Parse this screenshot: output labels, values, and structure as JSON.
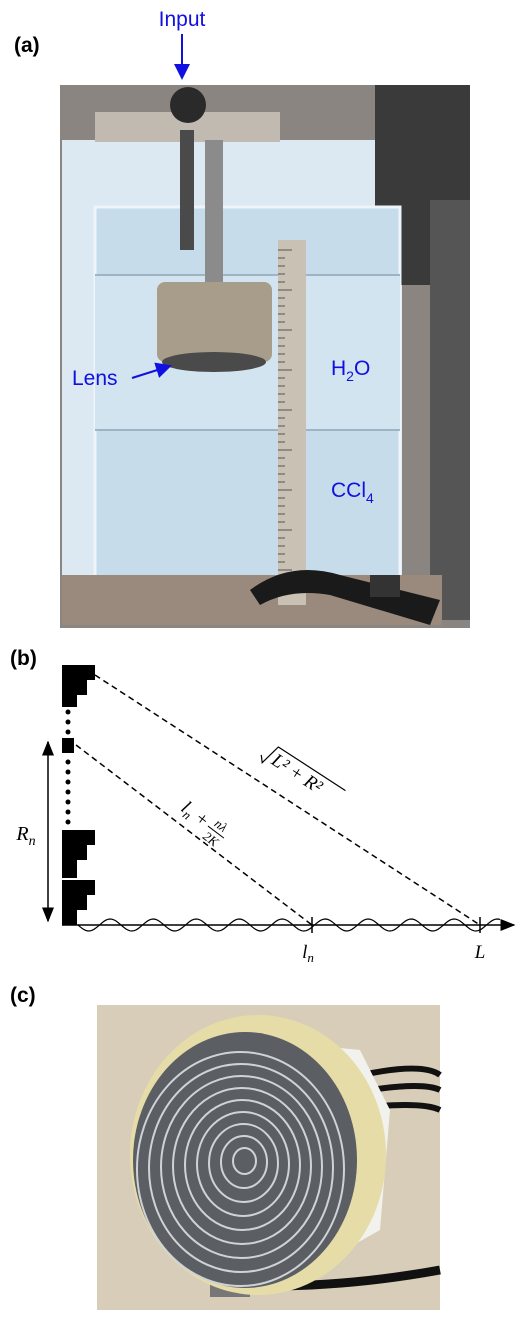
{
  "panel_a": {
    "label": "(a)",
    "input": "Input",
    "lens": "Lens",
    "h2o": {
      "base": "H",
      "sub": "2",
      "rest": "O"
    },
    "ccl4": {
      "base": "CCl",
      "sub": "4"
    }
  },
  "panel_b": {
    "label": "(b)",
    "radius": {
      "base": "R",
      "sub": "n"
    },
    "hypotenuse": {
      "radicand": "L² + R²"
    },
    "path_length": {
      "term": "l",
      "sub": "n",
      "plus": "+",
      "num": "nλ",
      "den": "2K"
    },
    "tick_ln": {
      "base": "l",
      "sub": "n"
    },
    "tick_L": "L"
  },
  "panel_c": {
    "label": "(c)"
  }
}
